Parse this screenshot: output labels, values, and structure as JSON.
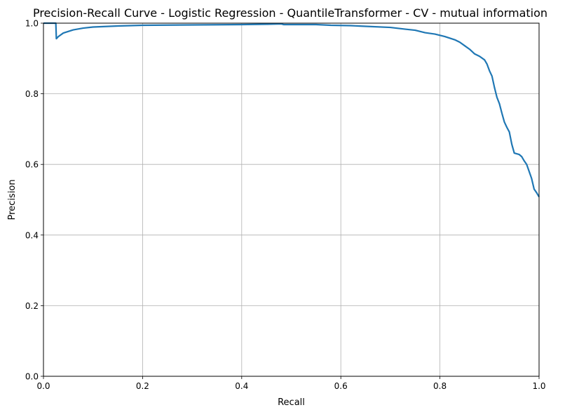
{
  "chart_data": {
    "type": "line",
    "title": "Precision-Recall Curve - Logistic Regression - QuantileTransformer - CV - mutual information",
    "xlabel": "Recall",
    "ylabel": "Precision",
    "xlim": [
      0.0,
      1.0
    ],
    "ylim": [
      0.0,
      1.0
    ],
    "xticks": [
      "0.0",
      "0.2",
      "0.4",
      "0.6",
      "0.8",
      "1.0"
    ],
    "yticks": [
      "0.0",
      "0.2",
      "0.4",
      "0.6",
      "0.8",
      "1.0"
    ],
    "grid": true,
    "series": [
      {
        "color": "#1f77b4",
        "points": [
          [
            0.0,
            1.0
          ],
          [
            0.025,
            1.0
          ],
          [
            0.025,
            0.999
          ],
          [
            0.026,
            0.956
          ],
          [
            0.03,
            0.962
          ],
          [
            0.04,
            0.972
          ],
          [
            0.06,
            0.981
          ],
          [
            0.08,
            0.986
          ],
          [
            0.1,
            0.989
          ],
          [
            0.15,
            0.992
          ],
          [
            0.2,
            0.994
          ],
          [
            0.3,
            0.995
          ],
          [
            0.4,
            0.996
          ],
          [
            0.45,
            0.997
          ],
          [
            0.48,
            0.998
          ],
          [
            0.485,
            0.996
          ],
          [
            0.55,
            0.996
          ],
          [
            0.58,
            0.994
          ],
          [
            0.62,
            0.993
          ],
          [
            0.65,
            0.991
          ],
          [
            0.7,
            0.988
          ],
          [
            0.73,
            0.983
          ],
          [
            0.75,
            0.98
          ],
          [
            0.77,
            0.973
          ],
          [
            0.79,
            0.969
          ],
          [
            0.81,
            0.962
          ],
          [
            0.83,
            0.953
          ],
          [
            0.84,
            0.946
          ],
          [
            0.85,
            0.936
          ],
          [
            0.86,
            0.926
          ],
          [
            0.87,
            0.913
          ],
          [
            0.88,
            0.906
          ],
          [
            0.89,
            0.896
          ],
          [
            0.895,
            0.884
          ],
          [
            0.9,
            0.865
          ],
          [
            0.905,
            0.85
          ],
          [
            0.91,
            0.818
          ],
          [
            0.915,
            0.79
          ],
          [
            0.92,
            0.772
          ],
          [
            0.925,
            0.745
          ],
          [
            0.93,
            0.72
          ],
          [
            0.935,
            0.705
          ],
          [
            0.94,
            0.692
          ],
          [
            0.945,
            0.657
          ],
          [
            0.95,
            0.632
          ],
          [
            0.96,
            0.628
          ],
          [
            0.965,
            0.622
          ],
          [
            0.97,
            0.61
          ],
          [
            0.975,
            0.6
          ],
          [
            0.98,
            0.58
          ],
          [
            0.985,
            0.56
          ],
          [
            0.99,
            0.53
          ],
          [
            0.995,
            0.52
          ],
          [
            1.0,
            0.508
          ]
        ]
      }
    ]
  }
}
